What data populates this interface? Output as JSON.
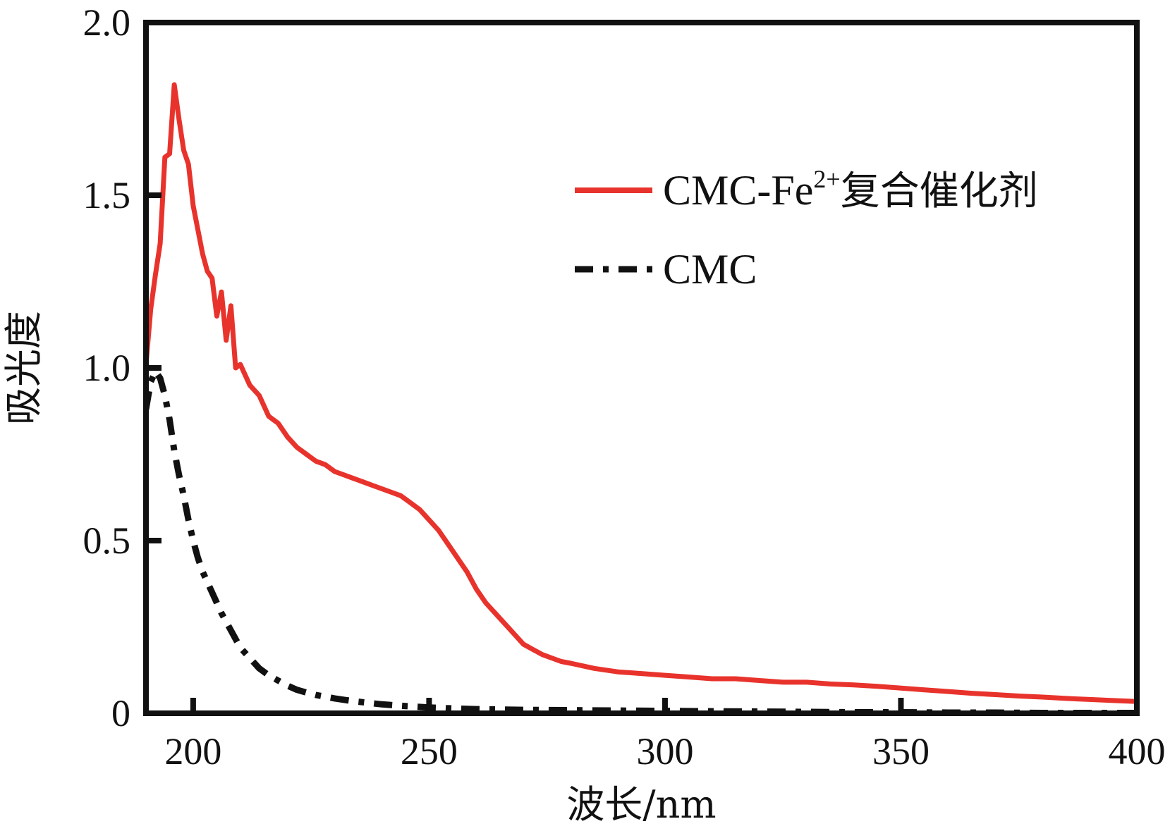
{
  "chart_data": {
    "type": "line",
    "xlabel": "波长/nm",
    "ylabel": "吸光度",
    "xlim": [
      190,
      400
    ],
    "ylim": [
      0,
      2.0
    ],
    "x_ticks": [
      200,
      250,
      300,
      350,
      400
    ],
    "y_ticks": [
      0,
      0.5,
      1.0,
      1.5,
      2.0
    ],
    "x_tick_labels": [
      "200",
      "250",
      "300",
      "350",
      "400"
    ],
    "y_tick_labels": [
      "0",
      "0.5",
      "1.0",
      "1.5",
      "2.0"
    ],
    "grid": false,
    "legend_position": "top-right",
    "series": [
      {
        "name": "CMC-Fe²⁺复合催化剂",
        "name_parts": {
          "base": "CMC-Fe",
          "sup": "2+",
          "suffix": "复合催化剂"
        },
        "color": "#e8332c",
        "style": "solid",
        "points": [
          [
            190,
            1.01
          ],
          [
            191,
            1.17
          ],
          [
            192,
            1.27
          ],
          [
            193,
            1.36
          ],
          [
            194,
            1.61
          ],
          [
            195,
            1.62
          ],
          [
            196,
            1.82
          ],
          [
            197,
            1.72
          ],
          [
            198,
            1.63
          ],
          [
            199,
            1.59
          ],
          [
            200,
            1.47
          ],
          [
            201,
            1.4
          ],
          [
            202,
            1.33
          ],
          [
            203,
            1.28
          ],
          [
            204,
            1.26
          ],
          [
            205,
            1.15
          ],
          [
            206,
            1.22
          ],
          [
            207,
            1.08
          ],
          [
            208,
            1.18
          ],
          [
            209,
            1.0
          ],
          [
            210,
            1.01
          ],
          [
            212,
            0.95
          ],
          [
            214,
            0.92
          ],
          [
            216,
            0.86
          ],
          [
            218,
            0.84
          ],
          [
            220,
            0.8
          ],
          [
            222,
            0.77
          ],
          [
            224,
            0.75
          ],
          [
            226,
            0.73
          ],
          [
            228,
            0.72
          ],
          [
            230,
            0.7
          ],
          [
            232,
            0.69
          ],
          [
            234,
            0.68
          ],
          [
            236,
            0.67
          ],
          [
            238,
            0.66
          ],
          [
            240,
            0.65
          ],
          [
            242,
            0.64
          ],
          [
            244,
            0.63
          ],
          [
            246,
            0.61
          ],
          [
            248,
            0.59
          ],
          [
            250,
            0.56
          ],
          [
            252,
            0.53
          ],
          [
            254,
            0.49
          ],
          [
            256,
            0.45
          ],
          [
            258,
            0.41
          ],
          [
            260,
            0.36
          ],
          [
            262,
            0.32
          ],
          [
            264,
            0.29
          ],
          [
            266,
            0.26
          ],
          [
            268,
            0.23
          ],
          [
            270,
            0.2
          ],
          [
            272,
            0.185
          ],
          [
            274,
            0.17
          ],
          [
            276,
            0.16
          ],
          [
            278,
            0.15
          ],
          [
            280,
            0.145
          ],
          [
            285,
            0.13
          ],
          [
            290,
            0.12
          ],
          [
            295,
            0.115
          ],
          [
            300,
            0.11
          ],
          [
            305,
            0.105
          ],
          [
            310,
            0.1
          ],
          [
            315,
            0.1
          ],
          [
            320,
            0.095
          ],
          [
            325,
            0.09
          ],
          [
            330,
            0.09
          ],
          [
            335,
            0.085
          ],
          [
            340,
            0.082
          ],
          [
            345,
            0.078
          ],
          [
            350,
            0.073
          ],
          [
            355,
            0.068
          ],
          [
            360,
            0.063
          ],
          [
            365,
            0.058
          ],
          [
            370,
            0.054
          ],
          [
            375,
            0.05
          ],
          [
            380,
            0.047
          ],
          [
            385,
            0.043
          ],
          [
            390,
            0.04
          ],
          [
            395,
            0.037
          ],
          [
            400,
            0.034
          ]
        ]
      },
      {
        "name": "CMC",
        "color": "#111111",
        "style": "dash-dot",
        "points": [
          [
            190,
            0.88
          ],
          [
            191,
            0.96
          ],
          [
            192,
            0.99
          ],
          [
            193,
            0.97
          ],
          [
            194,
            0.92
          ],
          [
            195,
            0.85
          ],
          [
            196,
            0.76
          ],
          [
            197,
            0.69
          ],
          [
            198,
            0.63
          ],
          [
            199,
            0.56
          ],
          [
            200,
            0.5
          ],
          [
            201,
            0.45
          ],
          [
            202,
            0.41
          ],
          [
            203,
            0.38
          ],
          [
            204,
            0.35
          ],
          [
            205,
            0.32
          ],
          [
            206,
            0.29
          ],
          [
            208,
            0.24
          ],
          [
            210,
            0.19
          ],
          [
            212,
            0.16
          ],
          [
            214,
            0.13
          ],
          [
            216,
            0.11
          ],
          [
            218,
            0.095
          ],
          [
            220,
            0.08
          ],
          [
            222,
            0.068
          ],
          [
            224,
            0.06
          ],
          [
            226,
            0.053
          ],
          [
            228,
            0.048
          ],
          [
            230,
            0.043
          ],
          [
            232,
            0.039
          ],
          [
            234,
            0.035
          ],
          [
            236,
            0.032
          ],
          [
            238,
            0.029
          ],
          [
            240,
            0.026
          ],
          [
            245,
            0.021
          ],
          [
            250,
            0.017
          ],
          [
            255,
            0.014
          ],
          [
            260,
            0.012
          ],
          [
            270,
            0.01
          ],
          [
            280,
            0.009
          ],
          [
            290,
            0.008
          ],
          [
            300,
            0.007
          ],
          [
            310,
            0.006
          ],
          [
            320,
            0.005
          ],
          [
            330,
            0.004
          ],
          [
            340,
            0.003
          ],
          [
            350,
            0.003
          ],
          [
            360,
            0.002
          ],
          [
            370,
            0.002
          ],
          [
            380,
            0.001
          ],
          [
            390,
            0.001
          ],
          [
            400,
            0.001
          ]
        ]
      }
    ]
  }
}
